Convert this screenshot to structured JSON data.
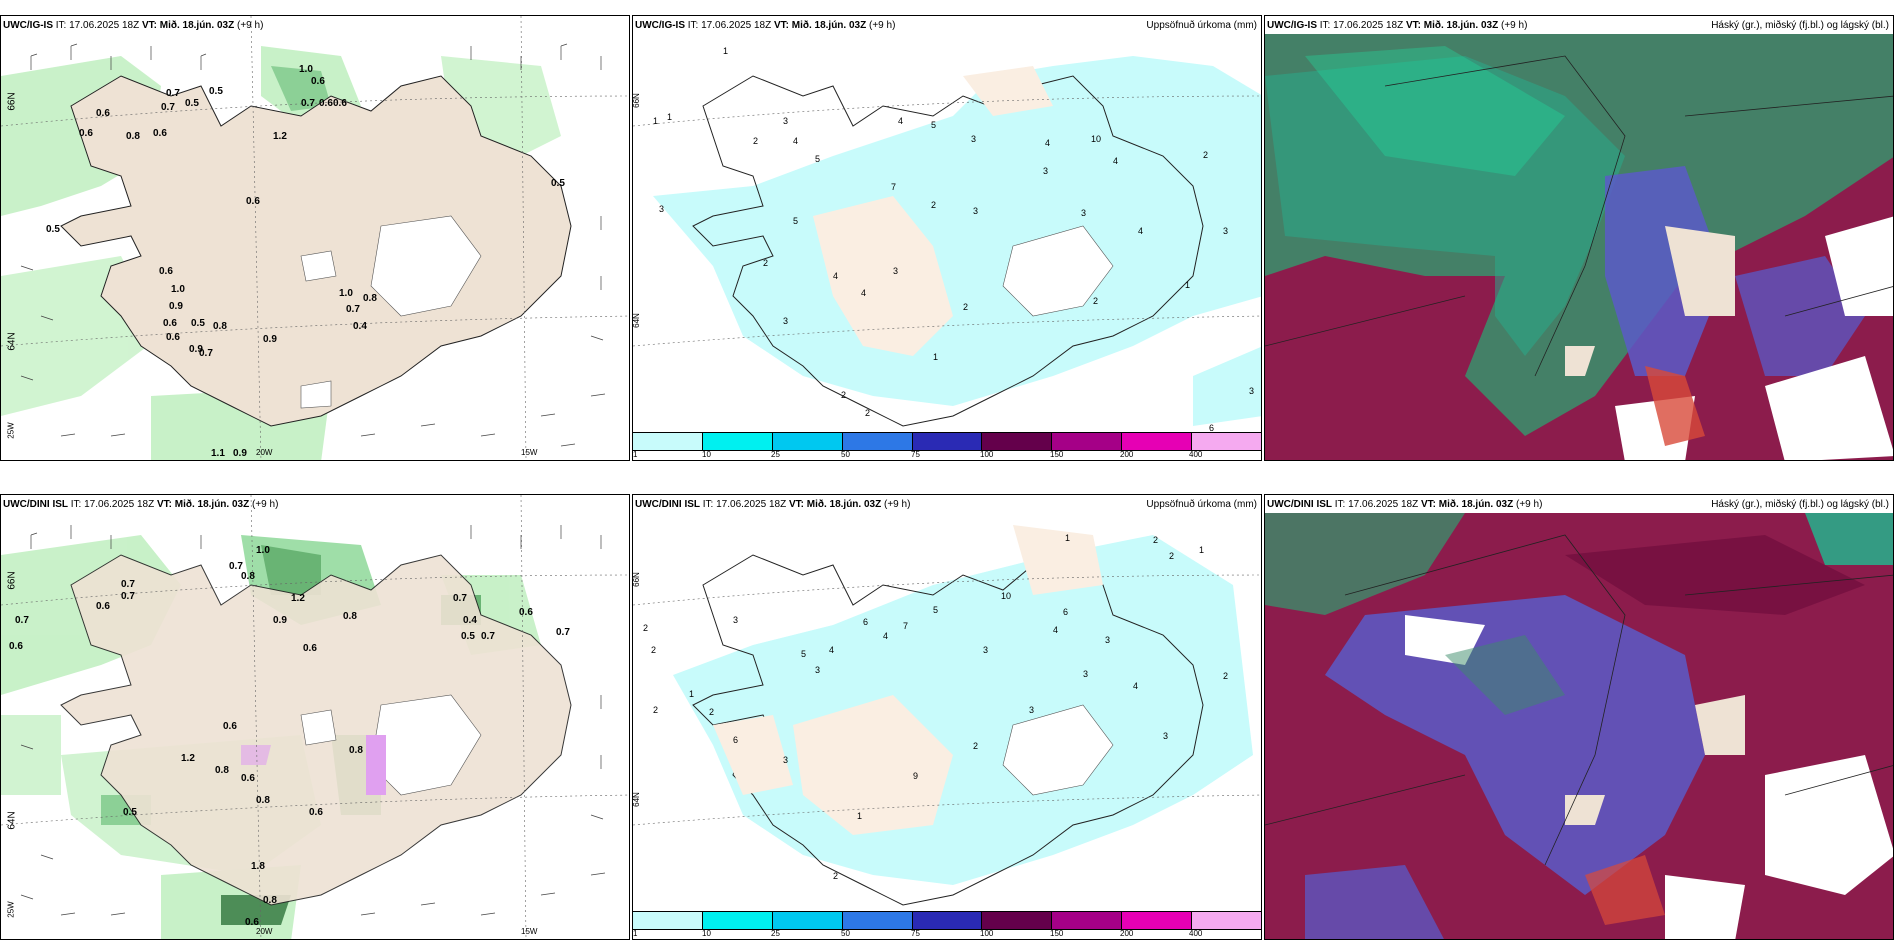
{
  "rows": [
    {
      "model": "UWC/IG-IS",
      "it_label": "IT: 17.06.2025 18Z",
      "vt_label": "VT: Mið. 18.jún. 03Z",
      "lead": "(+9 h)",
      "wind_labels": [
        "1.0",
        "0.6",
        "0.7",
        "0.6",
        "0.6",
        "0.5",
        "0.7",
        "0.6",
        "0.5",
        "0.7",
        "0.6",
        "0.8",
        "0.6",
        "1.2",
        "0.6",
        "0.5",
        "0.6",
        "1.0",
        "0.9",
        "0.6",
        "0.5",
        "0.6",
        "0.7",
        "0.9",
        "0.8",
        "1.0",
        "0.7",
        "0.8",
        "0.4",
        "0.9",
        "1.1",
        "0.9",
        "0.5"
      ],
      "precip_numbers": [
        "1",
        "1",
        "1",
        "3",
        "2",
        "3",
        "4",
        "5",
        "4",
        "5",
        "3",
        "4",
        "10",
        "4",
        "2",
        "7",
        "3",
        "2",
        "3",
        "4",
        "5",
        "2",
        "4",
        "3",
        "2",
        "3",
        "1",
        "2",
        "2",
        "4",
        "3",
        "2",
        "1",
        "3",
        "3",
        "6"
      ],
      "cloud_title": "Háský (gr.), miðský (fj.bl.) og lágský (bl.)",
      "precip_title": "Uppsöfnuð úrkoma (mm)"
    },
    {
      "model": "UWC/DINI ISL",
      "it_label": "IT: 17.06.2025 18Z",
      "vt_label": "VT: Mið. 18.jún. 03Z",
      "lead": "(+9 h)",
      "wind_labels": [
        "1.0",
        "0.7",
        "0.8",
        "0.7",
        "0.7",
        "0.6",
        "0.7",
        "0.9",
        "1.2",
        "0.8",
        "0.6",
        "0.7",
        "0.5",
        "0.6",
        "0.7",
        "0.4",
        "0.6",
        "0.8",
        "0.7",
        "0.6",
        "1.2",
        "0.8",
        "0.6",
        "0.5",
        "0.8",
        "0.6",
        "1.8",
        "0.8",
        "0.6"
      ],
      "precip_numbers": [
        "1",
        "2",
        "2",
        "3",
        "10",
        "5",
        "6",
        "4",
        "7",
        "6",
        "3",
        "4",
        "3",
        "2",
        "2",
        "1",
        "2",
        "1",
        "2",
        "5",
        "3",
        "4",
        "6",
        "3",
        "9",
        "2",
        "3",
        "3",
        "4",
        "2",
        "1",
        "3",
        "2"
      ],
      "cloud_title": "Háský (gr.), miðský (fj.bl.) og lágský (bl.)",
      "precip_title": "Uppsöfnuð úrkoma (mm)"
    }
  ],
  "axis_labels": {
    "lat66": "66N",
    "lat64": "64N",
    "lon20": "20W",
    "lon15": "15W",
    "lon25": "25W"
  },
  "colorbar": {
    "ticks": [
      "1",
      "10",
      "25",
      "50",
      "75",
      "100",
      "150",
      "200",
      "400"
    ],
    "colors": [
      "#c8fbfb",
      "#00f0f0",
      "#00c8f0",
      "#2d78e6",
      "#2a2ab4",
      "#64004b",
      "#a50087",
      "#e600b4",
      "#f5aaf0"
    ]
  }
}
